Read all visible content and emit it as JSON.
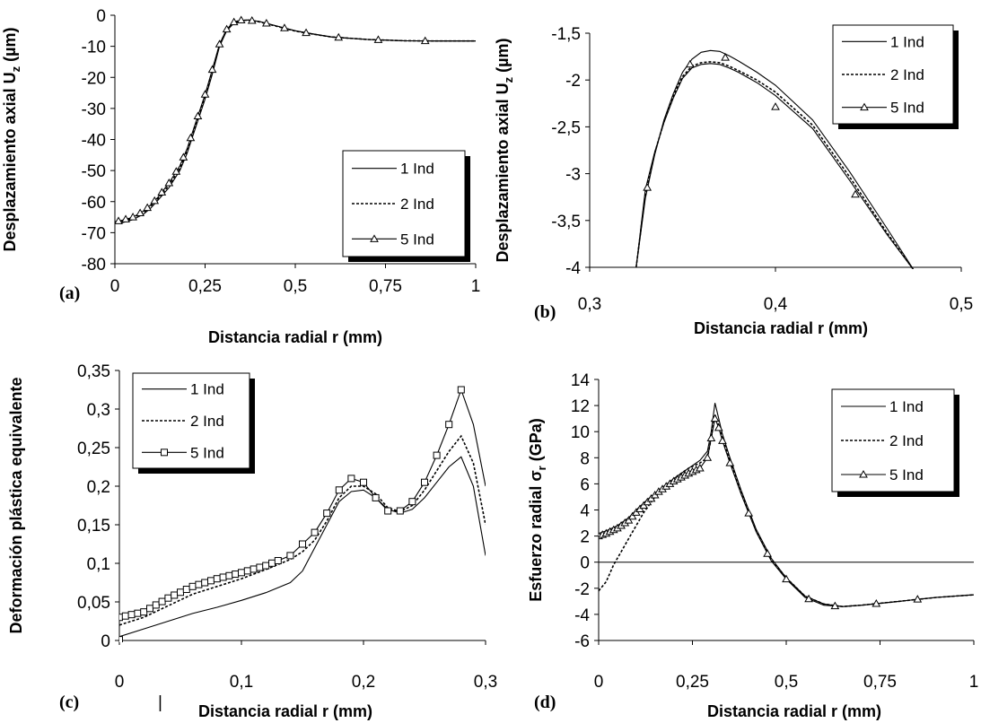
{
  "chart_data": [
    {
      "panel_label": "(a)",
      "type": "line",
      "xlabel": "Distancia radial r (mm)",
      "ylabel": "Desplazamiento axial U_z (µm)",
      "ylabel_parts": [
        "Desplazamiento axial U",
        "z",
        " (µm)"
      ],
      "xlim": [
        0,
        1
      ],
      "ylim": [
        -80,
        0
      ],
      "xticks": [
        "0",
        "0,25",
        "0,5",
        "0,75",
        "1"
      ],
      "yticks": [
        "0",
        "-10",
        "-20",
        "-30",
        "-40",
        "-50",
        "-60",
        "-70",
        "-80"
      ],
      "legend": [
        "1 Ind",
        "2 Ind",
        "5 Ind"
      ],
      "legend_position": "lower-right",
      "series": [
        {
          "name": "1 Ind",
          "marker": "none",
          "dash": "solid",
          "x": [
            0,
            0.02,
            0.05,
            0.08,
            0.1,
            0.12,
            0.15,
            0.18,
            0.2,
            0.22,
            0.25,
            0.27,
            0.29,
            0.31,
            0.33,
            0.35,
            0.37,
            0.4,
            0.45,
            0.5,
            0.55,
            0.6,
            0.7,
            0.8,
            0.9,
            1.0
          ],
          "y": [
            -67,
            -66.8,
            -65.8,
            -64,
            -62,
            -59.5,
            -55.5,
            -50,
            -44.5,
            -37.5,
            -27,
            -19,
            -10,
            -5,
            -2.5,
            -1.8,
            -1.5,
            -2,
            -3.5,
            -5,
            -6,
            -7,
            -7.8,
            -8.2,
            -8.3,
            -8.3
          ]
        },
        {
          "name": "2 Ind",
          "marker": "none",
          "dash": "dashed",
          "x": [
            0,
            0.02,
            0.05,
            0.08,
            0.1,
            0.12,
            0.15,
            0.18,
            0.2,
            0.22,
            0.25,
            0.27,
            0.29,
            0.31,
            0.33,
            0.35,
            0.37,
            0.4,
            0.45,
            0.5,
            0.55,
            0.6,
            0.7,
            0.8,
            0.9,
            1.0
          ],
          "y": [
            -66.6,
            -66.2,
            -65.3,
            -63.5,
            -61.4,
            -59,
            -54.8,
            -49.3,
            -43.6,
            -36.5,
            -26,
            -18,
            -9.5,
            -4.6,
            -2.2,
            -1.6,
            -1.6,
            -2.1,
            -3.6,
            -5.1,
            -6.1,
            -7,
            -7.8,
            -8.2,
            -8.3,
            -8.3
          ]
        },
        {
          "name": "5 Ind",
          "marker": "triangle",
          "dash": "solid",
          "x": [
            0,
            0.02,
            0.05,
            0.08,
            0.1,
            0.12,
            0.15,
            0.18,
            0.2,
            0.22,
            0.25,
            0.27,
            0.29,
            0.31,
            0.33,
            0.35,
            0.37,
            0.4,
            0.45,
            0.5,
            0.55,
            0.6,
            0.7,
            0.8,
            0.9,
            1.0
          ],
          "y": [
            -66.5,
            -66,
            -65,
            -63,
            -61,
            -58.5,
            -54,
            -48.5,
            -43,
            -36,
            -25.5,
            -17.5,
            -9.3,
            -4.5,
            -2.2,
            -1.6,
            -1.6,
            -2,
            -3.5,
            -5,
            -6.1,
            -7,
            -7.8,
            -8.2,
            -8.3,
            -8.3
          ],
          "marker_x": [
            0.01,
            0.03,
            0.05,
            0.07,
            0.09,
            0.11,
            0.13,
            0.15,
            0.17,
            0.19,
            0.21,
            0.23,
            0.25,
            0.27,
            0.29,
            0.31,
            0.33,
            0.35,
            0.38,
            0.42,
            0.47,
            0.53,
            0.62,
            0.73,
            0.86
          ]
        }
      ]
    },
    {
      "panel_label": "(b)",
      "type": "line",
      "xlabel": "Distancia radial r (mm)",
      "ylabel": "Desplazamiento axial U_z (µm)",
      "ylabel_parts": [
        "Desplazamiento axial U",
        "z",
        " (µm)"
      ],
      "xlim": [
        0.3,
        0.5
      ],
      "ylim": [
        -4,
        -1.3
      ],
      "xticks": [
        "0,3",
        "0,4",
        "0,5"
      ],
      "yticks": [
        "-1,5",
        "-2",
        "-2,5",
        "-3",
        "-3,5",
        "-4"
      ],
      "legend": [
        "1 Ind",
        "2 Ind",
        "5 Ind"
      ],
      "legend_position": "top-right",
      "series": [
        {
          "name": "1 Ind",
          "marker": "none",
          "dash": "solid",
          "x": [
            0.325,
            0.33,
            0.335,
            0.34,
            0.345,
            0.35,
            0.355,
            0.36,
            0.365,
            0.37,
            0.375,
            0.38,
            0.39,
            0.4,
            0.42,
            0.44,
            0.46,
            0.475
          ],
          "y": [
            -4,
            -3.2,
            -2.7,
            -2.3,
            -2.0,
            -1.75,
            -1.6,
            -1.52,
            -1.5,
            -1.51,
            -1.56,
            -1.62,
            -1.75,
            -1.9,
            -2.3,
            -2.9,
            -3.55,
            -4.05
          ]
        },
        {
          "name": "2 Ind",
          "marker": "none",
          "dash": "dashed",
          "x": [
            0.325,
            0.33,
            0.335,
            0.34,
            0.345,
            0.35,
            0.355,
            0.36,
            0.365,
            0.37,
            0.375,
            0.38,
            0.39,
            0.4,
            0.42,
            0.44,
            0.46,
            0.475
          ],
          "y": [
            -4,
            -3.15,
            -2.68,
            -2.32,
            -2.02,
            -1.8,
            -1.68,
            -1.64,
            -1.63,
            -1.64,
            -1.68,
            -1.73,
            -1.84,
            -1.98,
            -2.36,
            -2.96,
            -3.6,
            -4.05
          ]
        },
        {
          "name": "5 Ind",
          "marker": "triangle",
          "dash": "solid",
          "x": [
            0.325,
            0.33,
            0.335,
            0.34,
            0.345,
            0.35,
            0.355,
            0.36,
            0.365,
            0.37,
            0.375,
            0.38,
            0.39,
            0.4,
            0.42,
            0.44,
            0.46,
            0.475
          ],
          "y": [
            -4,
            -3.1,
            -2.67,
            -2.33,
            -2.05,
            -1.82,
            -1.7,
            -1.66,
            -1.65,
            -1.66,
            -1.7,
            -1.75,
            -1.87,
            -2.02,
            -2.4,
            -3.0,
            -3.62,
            -4.05
          ],
          "marker_points": [
            [
              0.331,
              -3.08
            ],
            [
              0.354,
              -1.66
            ],
            [
              0.373,
              -1.58
            ],
            [
              0.4,
              -2.15
            ],
            [
              0.443,
              -3.16
            ]
          ]
        }
      ]
    },
    {
      "panel_label": "(c)",
      "type": "line",
      "xlabel": "Distancia radial r (mm)",
      "ylabel": "Deformación plástica equivalente",
      "xlim": [
        0,
        0.3
      ],
      "ylim": [
        0,
        0.35
      ],
      "xticks": [
        "0",
        "0,1",
        "0,2",
        "0,3"
      ],
      "yticks": [
        "0,35",
        "0,3",
        "0,25",
        "0,2",
        "0,15",
        "0,1",
        "0,05",
        "0"
      ],
      "legend": [
        "1 Ind",
        "2 Ind",
        "5 Ind"
      ],
      "legend_position": "top-left",
      "extra_text": "|",
      "series": [
        {
          "name": "1 Ind",
          "marker": "none",
          "dash": "solid",
          "x": [
            0,
            0.02,
            0.04,
            0.06,
            0.08,
            0.1,
            0.12,
            0.14,
            0.15,
            0.16,
            0.17,
            0.18,
            0.19,
            0.2,
            0.21,
            0.22,
            0.23,
            0.24,
            0.25,
            0.26,
            0.27,
            0.28,
            0.29,
            0.3
          ],
          "y": [
            0.005,
            0.015,
            0.025,
            0.035,
            0.043,
            0.052,
            0.062,
            0.075,
            0.09,
            0.12,
            0.15,
            0.18,
            0.193,
            0.195,
            0.185,
            0.17,
            0.165,
            0.17,
            0.185,
            0.205,
            0.225,
            0.238,
            0.2,
            0.11
          ]
        },
        {
          "name": "2 Ind",
          "marker": "none",
          "dash": "dashed",
          "x": [
            0,
            0.02,
            0.04,
            0.06,
            0.08,
            0.1,
            0.12,
            0.14,
            0.15,
            0.16,
            0.17,
            0.18,
            0.19,
            0.2,
            0.21,
            0.22,
            0.23,
            0.24,
            0.25,
            0.26,
            0.27,
            0.28,
            0.29,
            0.3
          ],
          "y": [
            0.02,
            0.03,
            0.045,
            0.06,
            0.07,
            0.08,
            0.092,
            0.105,
            0.115,
            0.13,
            0.155,
            0.185,
            0.2,
            0.2,
            0.19,
            0.172,
            0.167,
            0.175,
            0.195,
            0.22,
            0.245,
            0.265,
            0.23,
            0.15
          ]
        },
        {
          "name": "5 Ind",
          "marker": "square",
          "dash": "solid",
          "x": [
            0,
            0.02,
            0.04,
            0.06,
            0.08,
            0.1,
            0.12,
            0.14,
            0.15,
            0.16,
            0.17,
            0.18,
            0.19,
            0.2,
            0.21,
            0.22,
            0.23,
            0.24,
            0.25,
            0.26,
            0.27,
            0.28,
            0.29,
            0.3
          ],
          "y": [
            0.03,
            0.037,
            0.055,
            0.07,
            0.08,
            0.088,
            0.097,
            0.11,
            0.125,
            0.14,
            0.165,
            0.195,
            0.21,
            0.205,
            0.185,
            0.168,
            0.168,
            0.18,
            0.205,
            0.24,
            0.28,
            0.325,
            0.28,
            0.2
          ],
          "marker_x": [
            0,
            0.005,
            0.01,
            0.015,
            0.02,
            0.025,
            0.03,
            0.035,
            0.04,
            0.045,
            0.05,
            0.055,
            0.06,
            0.065,
            0.07,
            0.075,
            0.08,
            0.085,
            0.09,
            0.095,
            0.1,
            0.105,
            0.11,
            0.115,
            0.12,
            0.125,
            0.13,
            0.14,
            0.15,
            0.16,
            0.17,
            0.18,
            0.19,
            0.2,
            0.21,
            0.22,
            0.23,
            0.24,
            0.25,
            0.26,
            0.27,
            0.28
          ],
          "special_markers": [
            [
              0,
              0.001
            ]
          ]
        }
      ]
    },
    {
      "panel_label": "(d)",
      "type": "line",
      "xlabel": "Distancia radial r (mm)",
      "ylabel": "Esfuerzo radial σr (GPa)",
      "ylabel_parts": [
        "Esfuerzo radial  σ",
        "r",
        " (GPa)"
      ],
      "xlim": [
        0,
        1
      ],
      "ylim": [
        -6,
        14
      ],
      "xticks": [
        "0",
        "0,25",
        "0,5",
        "0,75",
        "1"
      ],
      "yticks": [
        "14",
        "12",
        "10",
        "8",
        "6",
        "4",
        "2",
        "0",
        "-2",
        "-4",
        "-6"
      ],
      "legend": [
        "1 Ind",
        "2 Ind",
        "5 Ind"
      ],
      "legend_position": "top-right",
      "series": [
        {
          "name": "1 Ind",
          "marker": "none",
          "dash": "solid",
          "x": [
            0,
            0.02,
            0.05,
            0.08,
            0.1,
            0.13,
            0.16,
            0.2,
            0.24,
            0.27,
            0.29,
            0.3,
            0.31,
            0.32,
            0.33,
            0.35,
            0.38,
            0.42,
            0.46,
            0.5,
            0.55,
            0.6,
            0.65,
            0.7,
            0.8,
            0.9,
            1.0
          ],
          "y": [
            2.2,
            2.4,
            2.8,
            3.4,
            4,
            4.8,
            5.5,
            6.4,
            7.2,
            7.8,
            8.5,
            10,
            12.2,
            11,
            9.8,
            8,
            5.5,
            2.5,
            0.3,
            -1.2,
            -2.6,
            -3.2,
            -3.4,
            -3.3,
            -3,
            -2.7,
            -2.5
          ]
        },
        {
          "name": "2 Ind",
          "marker": "none",
          "dash": "dashed",
          "x": [
            0,
            0.02,
            0.04,
            0.06,
            0.08,
            0.1,
            0.12,
            0.15,
            0.2,
            0.24,
            0.27,
            0.29,
            0.3,
            0.31,
            0.32,
            0.33,
            0.35,
            0.38,
            0.42,
            0.46,
            0.5,
            0.55,
            0.6,
            0.65,
            0.7,
            0.8,
            0.9,
            1.0
          ],
          "y": [
            -2.2,
            -1.5,
            -0.2,
            0.8,
            1.8,
            2.8,
            3.8,
            5,
            6.4,
            7.2,
            7.6,
            8,
            9.5,
            11.3,
            10.5,
            9.5,
            7.8,
            5.4,
            2.4,
            0.2,
            -1.2,
            -2.6,
            -3.2,
            -3.4,
            -3.3,
            -3,
            -2.7,
            -2.5
          ]
        },
        {
          "name": "5 Ind",
          "marker": "triangle",
          "dash": "solid",
          "x": [
            0,
            0.02,
            0.05,
            0.08,
            0.1,
            0.13,
            0.16,
            0.2,
            0.24,
            0.27,
            0.29,
            0.3,
            0.31,
            0.32,
            0.33,
            0.35,
            0.38,
            0.42,
            0.46,
            0.5,
            0.55,
            0.6,
            0.65,
            0.7,
            0.8,
            0.9,
            1.0
          ],
          "y": [
            2.0,
            2.2,
            2.6,
            3.2,
            3.8,
            4.6,
            5.4,
            6.2,
            6.8,
            7.2,
            8,
            9.5,
            11,
            10.3,
            9.3,
            7.6,
            5.2,
            2.3,
            0.1,
            -1.3,
            -2.7,
            -3.3,
            -3.4,
            -3.3,
            -3,
            -2.7,
            -2.5
          ],
          "marker_x": [
            0,
            0.01,
            0.02,
            0.03,
            0.04,
            0.05,
            0.06,
            0.07,
            0.08,
            0.09,
            0.1,
            0.11,
            0.12,
            0.13,
            0.14,
            0.15,
            0.16,
            0.17,
            0.18,
            0.19,
            0.2,
            0.21,
            0.22,
            0.23,
            0.24,
            0.25,
            0.26,
            0.27,
            0.29,
            0.3,
            0.31,
            0.32,
            0.33,
            0.35,
            0.4,
            0.45,
            0.5,
            0.56,
            0.63,
            0.74,
            0.85
          ]
        }
      ]
    }
  ]
}
